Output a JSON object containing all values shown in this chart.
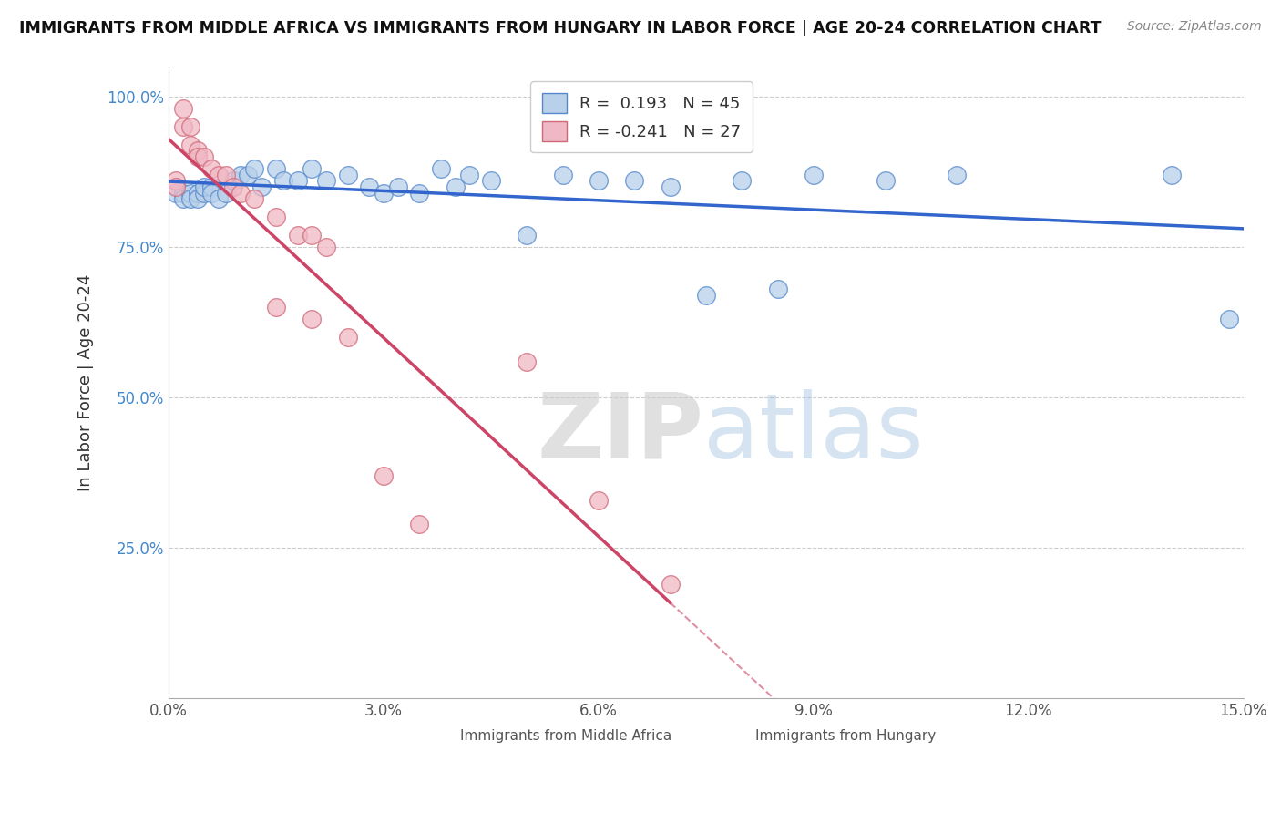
{
  "title": "IMMIGRANTS FROM MIDDLE AFRICA VS IMMIGRANTS FROM HUNGARY IN LABOR FORCE | AGE 20-24 CORRELATION CHART",
  "source": "Source: ZipAtlas.com",
  "ylabel": "In Labor Force | Age 20-24",
  "xlim": [
    0.0,
    0.15
  ],
  "ylim": [
    0.0,
    1.05
  ],
  "x_ticks": [
    0.0,
    0.03,
    0.06,
    0.09,
    0.12,
    0.15
  ],
  "x_tick_labels": [
    "0.0%",
    "3.0%",
    "6.0%",
    "9.0%",
    "12.0%",
    "15.0%"
  ],
  "y_ticks": [
    0.25,
    0.5,
    0.75,
    1.0
  ],
  "y_tick_labels": [
    "25.0%",
    "50.0%",
    "75.0%",
    "100.0%"
  ],
  "legend_r_blue": "0.193",
  "legend_n_blue": "45",
  "legend_r_pink": "-0.241",
  "legend_n_pink": "27",
  "blue_color": "#b8d0ea",
  "blue_edge": "#5588cc",
  "pink_color": "#f0b8c4",
  "pink_edge": "#d06878",
  "trend_blue": "#3366cc",
  "trend_pink": "#cc4466",
  "blue_scatter": [
    [
      0.001,
      0.84
    ],
    [
      0.002,
      0.84
    ],
    [
      0.002,
      0.83
    ],
    [
      0.003,
      0.84
    ],
    [
      0.003,
      0.83
    ],
    [
      0.004,
      0.84
    ],
    [
      0.004,
      0.83
    ],
    [
      0.005,
      0.84
    ],
    [
      0.005,
      0.85
    ],
    [
      0.006,
      0.85
    ],
    [
      0.006,
      0.84
    ],
    [
      0.007,
      0.83
    ],
    [
      0.008,
      0.84
    ],
    [
      0.009,
      0.86
    ],
    [
      0.01,
      0.87
    ],
    [
      0.011,
      0.87
    ],
    [
      0.012,
      0.88
    ],
    [
      0.013,
      0.85
    ],
    [
      0.015,
      0.88
    ],
    [
      0.016,
      0.86
    ],
    [
      0.018,
      0.86
    ],
    [
      0.02,
      0.88
    ],
    [
      0.022,
      0.86
    ],
    [
      0.025,
      0.87
    ],
    [
      0.028,
      0.85
    ],
    [
      0.03,
      0.84
    ],
    [
      0.032,
      0.85
    ],
    [
      0.035,
      0.84
    ],
    [
      0.038,
      0.88
    ],
    [
      0.04,
      0.85
    ],
    [
      0.042,
      0.87
    ],
    [
      0.045,
      0.86
    ],
    [
      0.05,
      0.77
    ],
    [
      0.055,
      0.87
    ],
    [
      0.06,
      0.86
    ],
    [
      0.065,
      0.86
    ],
    [
      0.07,
      0.85
    ],
    [
      0.075,
      0.67
    ],
    [
      0.08,
      0.86
    ],
    [
      0.085,
      0.68
    ],
    [
      0.09,
      0.87
    ],
    [
      0.1,
      0.86
    ],
    [
      0.11,
      0.87
    ],
    [
      0.14,
      0.87
    ],
    [
      0.148,
      0.63
    ]
  ],
  "pink_scatter": [
    [
      0.001,
      0.86
    ],
    [
      0.001,
      0.85
    ],
    [
      0.002,
      0.98
    ],
    [
      0.002,
      0.95
    ],
    [
      0.003,
      0.95
    ],
    [
      0.003,
      0.92
    ],
    [
      0.004,
      0.91
    ],
    [
      0.004,
      0.9
    ],
    [
      0.005,
      0.9
    ],
    [
      0.006,
      0.88
    ],
    [
      0.007,
      0.87
    ],
    [
      0.008,
      0.87
    ],
    [
      0.009,
      0.85
    ],
    [
      0.01,
      0.84
    ],
    [
      0.012,
      0.83
    ],
    [
      0.015,
      0.8
    ],
    [
      0.018,
      0.77
    ],
    [
      0.02,
      0.77
    ],
    [
      0.022,
      0.75
    ],
    [
      0.015,
      0.65
    ],
    [
      0.02,
      0.63
    ],
    [
      0.025,
      0.6
    ],
    [
      0.03,
      0.37
    ],
    [
      0.035,
      0.29
    ],
    [
      0.05,
      0.56
    ],
    [
      0.06,
      0.33
    ],
    [
      0.07,
      0.19
    ]
  ]
}
